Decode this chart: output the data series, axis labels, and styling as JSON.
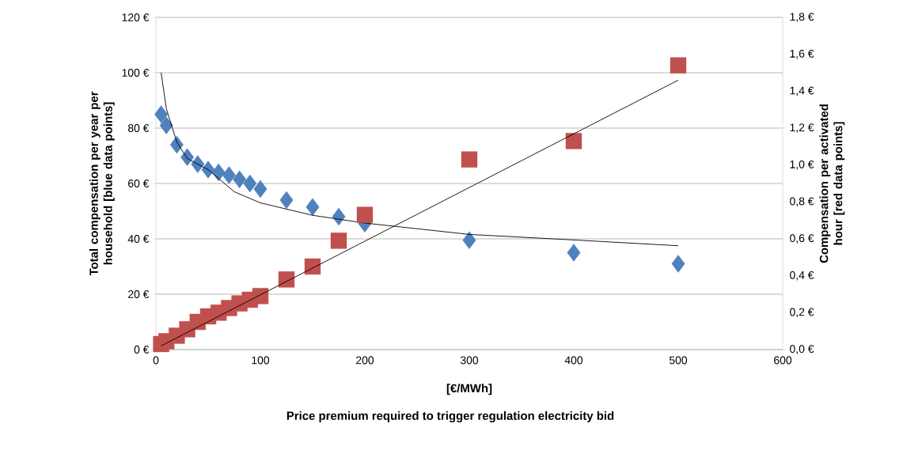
{
  "chart_data": {
    "type": "scatter",
    "xlabel": "[€/MWh]",
    "ylabel": "Total compensation per year per household [blue data points]",
    "y2label": "Compensation per activated hour [red data points]",
    "annotations": [
      "Price premium required to trigger regulation electricity bid"
    ],
    "x": [
      5,
      10,
      20,
      30,
      40,
      50,
      60,
      70,
      80,
      90,
      100,
      125,
      150,
      175,
      200,
      300,
      400,
      500
    ],
    "series": [
      {
        "type": "scatter",
        "axis": "y",
        "color": "#4f81bd",
        "marker": "diamond",
        "values": [
          85,
          81,
          74,
          69.5,
          67,
          65,
          64,
          63,
          61.5,
          60,
          58,
          54,
          51.5,
          48,
          45.5,
          39.5,
          35,
          31
        ]
      },
      {
        "type": "scatter",
        "axis": "y2",
        "color": "#c0504d",
        "marker": "square",
        "values": [
          0.03,
          0.045,
          0.075,
          0.11,
          0.15,
          0.18,
          0.2,
          0.225,
          0.25,
          0.27,
          0.29,
          0.38,
          0.45,
          0.59,
          0.73,
          1.03,
          1.13,
          1.54
        ]
      },
      {
        "type": "line",
        "axis": "y",
        "color": "#000000",
        "marker": "none",
        "x": [
          5,
          10,
          20,
          30,
          50,
          75,
          100,
          150,
          200,
          300,
          400,
          500
        ],
        "values": [
          100,
          87,
          75,
          69,
          65,
          57,
          53,
          48.5,
          45.7,
          41.6,
          39.6,
          37.5
        ]
      },
      {
        "type": "line",
        "axis": "y2",
        "color": "#000000",
        "marker": "none",
        "x": [
          5,
          500
        ],
        "values": [
          0.02,
          1.46
        ]
      }
    ],
    "xlim": [
      0,
      600
    ],
    "xticks": [
      0,
      100,
      200,
      300,
      400,
      500,
      600
    ],
    "ylim": [
      0,
      120
    ],
    "yticks": [
      {
        "value": 0,
        "label": "0 €"
      },
      {
        "value": 20,
        "label": "20 €"
      },
      {
        "value": 40,
        "label": "40 €"
      },
      {
        "value": 60,
        "label": "60 €"
      },
      {
        "value": 80,
        "label": "80 €"
      },
      {
        "value": 100,
        "label": "100 €"
      },
      {
        "value": 120,
        "label": "120 €"
      }
    ],
    "y2lim": [
      0,
      1.8
    ],
    "y2ticks": [
      {
        "value": 0,
        "label": "0,0 €"
      },
      {
        "value": 0.2,
        "label": "0,2 €"
      },
      {
        "value": 0.4,
        "label": "0,4 €"
      },
      {
        "value": 0.6,
        "label": "0,6 €"
      },
      {
        "value": 0.8,
        "label": "0,8 €"
      },
      {
        "value": 1.0,
        "label": "1,0 €"
      },
      {
        "value": 1.2,
        "label": "1,2 €"
      },
      {
        "value": 1.4,
        "label": "1,4 €"
      },
      {
        "value": 1.6,
        "label": "1,6 €"
      },
      {
        "value": 1.8,
        "label": "1,8 €"
      }
    ],
    "grid": "y"
  }
}
